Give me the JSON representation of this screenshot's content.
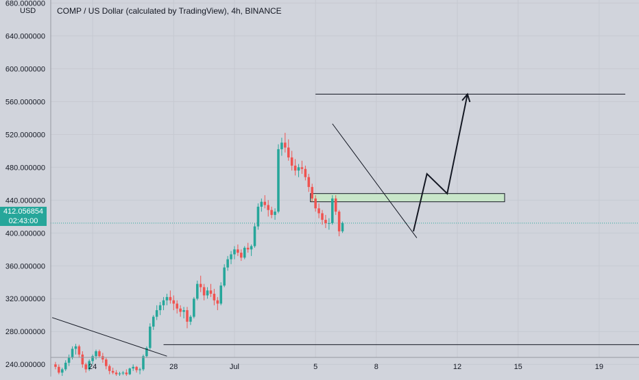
{
  "header": {
    "title": "COMP / US Dollar (calculated by TradingView), 4h, BINANCE"
  },
  "axis_unit": "USD",
  "current_price": {
    "value": "412.056854",
    "countdown": "02:43:00",
    "color": "#26a69a"
  },
  "colors": {
    "background": "#d1d4dc",
    "up": "#26a69a",
    "down": "#ef5350",
    "drawing": "#131722",
    "zone_fill": "#c8e6c9"
  },
  "chart_data": {
    "type": "candlestick",
    "title": "COMP / US Dollar (calculated by TradingView), 4h, BINANCE",
    "ylabel": "USD",
    "y_ticks": [
      {
        "label": "680.000000",
        "value": 680
      },
      {
        "label": "640.000000",
        "value": 640
      },
      {
        "label": "600.000000",
        "value": 600
      },
      {
        "label": "560.000000",
        "value": 560
      },
      {
        "label": "520.000000",
        "value": 520
      },
      {
        "label": "480.000000",
        "value": 480
      },
      {
        "label": "440.000000",
        "value": 440
      },
      {
        "label": "400.000000",
        "value": 400
      },
      {
        "label": "360.000000",
        "value": 360
      },
      {
        "label": "320.000000",
        "value": 320
      },
      {
        "label": "280.000000",
        "value": 280
      },
      {
        "label": "240.000000",
        "value": 240
      }
    ],
    "x_ticks": [
      {
        "label": "24",
        "date": "2020-06-24"
      },
      {
        "label": "28",
        "date": "2020-06-28"
      },
      {
        "label": "Jul",
        "date": "2020-07-01"
      },
      {
        "label": "5",
        "date": "2020-07-05"
      },
      {
        "label": "8",
        "date": "2020-07-08"
      },
      {
        "label": "12",
        "date": "2020-07-12"
      },
      {
        "label": "15",
        "date": "2020-07-15"
      },
      {
        "label": "19",
        "date": "2020-07-19"
      }
    ],
    "x_range": [
      "2020-06-22",
      "2020-07-21"
    ],
    "ylim": [
      226,
      682
    ],
    "candles": [
      [
        240,
        243,
        234,
        237
      ],
      [
        237,
        240,
        228,
        230
      ],
      [
        230,
        236,
        226,
        234
      ],
      [
        234,
        245,
        232,
        242
      ],
      [
        242,
        252,
        238,
        248
      ],
      [
        248,
        262,
        246,
        259
      ],
      [
        259,
        265,
        252,
        262
      ],
      [
        262,
        264,
        248,
        252
      ],
      [
        252,
        256,
        236,
        240
      ],
      [
        240,
        242,
        230,
        234
      ],
      [
        234,
        246,
        232,
        244
      ],
      [
        244,
        252,
        240,
        250
      ],
      [
        250,
        258,
        246,
        256
      ],
      [
        256,
        258,
        248,
        250
      ],
      [
        250,
        254,
        242,
        246
      ],
      [
        246,
        248,
        234,
        238
      ],
      [
        238,
        240,
        228,
        232
      ],
      [
        232,
        236,
        228,
        230
      ],
      [
        230,
        233,
        226,
        228
      ],
      [
        228,
        231,
        226,
        229
      ],
      [
        229,
        232,
        227,
        230
      ],
      [
        230,
        234,
        226,
        228
      ],
      [
        228,
        236,
        227,
        235
      ],
      [
        235,
        240,
        232,
        237
      ],
      [
        237,
        238,
        230,
        233
      ],
      [
        233,
        236,
        228,
        234
      ],
      [
        234,
        252,
        232,
        250
      ],
      [
        250,
        262,
        248,
        260
      ],
      [
        260,
        290,
        258,
        286
      ],
      [
        286,
        300,
        282,
        298
      ],
      [
        298,
        312,
        294,
        306
      ],
      [
        306,
        316,
        300,
        312
      ],
      [
        312,
        322,
        306,
        318
      ],
      [
        318,
        326,
        312,
        322
      ],
      [
        322,
        330,
        314,
        318
      ],
      [
        318,
        324,
        306,
        314
      ],
      [
        314,
        318,
        302,
        308
      ],
      [
        308,
        312,
        298,
        304
      ],
      [
        304,
        310,
        296,
        306
      ],
      [
        306,
        310,
        284,
        292
      ],
      [
        292,
        300,
        288,
        298
      ],
      [
        298,
        322,
        296,
        320
      ],
      [
        320,
        342,
        318,
        338
      ],
      [
        338,
        348,
        328,
        334
      ],
      [
        334,
        338,
        318,
        324
      ],
      [
        324,
        334,
        320,
        330
      ],
      [
        330,
        338,
        322,
        326
      ],
      [
        326,
        332,
        312,
        318
      ],
      [
        318,
        322,
        306,
        314
      ],
      [
        314,
        340,
        312,
        336
      ],
      [
        336,
        362,
        334,
        358
      ],
      [
        358,
        372,
        354,
        368
      ],
      [
        368,
        378,
        362,
        374
      ],
      [
        374,
        384,
        368,
        380
      ],
      [
        380,
        386,
        372,
        376
      ],
      [
        376,
        380,
        366,
        370
      ],
      [
        370,
        384,
        368,
        382
      ],
      [
        382,
        388,
        376,
        380
      ],
      [
        380,
        386,
        372,
        384
      ],
      [
        384,
        412,
        382,
        408
      ],
      [
        408,
        436,
        404,
        432
      ],
      [
        432,
        442,
        426,
        438
      ],
      [
        438,
        446,
        430,
        434
      ],
      [
        434,
        440,
        420,
        428
      ],
      [
        428,
        432,
        418,
        422
      ],
      [
        422,
        430,
        416,
        426
      ],
      [
        426,
        508,
        424,
        502
      ],
      [
        502,
        516,
        494,
        510
      ],
      [
        510,
        522,
        498,
        504
      ],
      [
        504,
        514,
        488,
        492
      ],
      [
        492,
        500,
        476,
        482
      ],
      [
        482,
        490,
        470,
        476
      ],
      [
        476,
        484,
        468,
        480
      ],
      [
        480,
        488,
        472,
        478
      ],
      [
        478,
        482,
        464,
        468
      ],
      [
        468,
        472,
        450,
        456
      ],
      [
        456,
        460,
        438,
        442
      ],
      [
        442,
        446,
        426,
        430
      ],
      [
        430,
        436,
        418,
        424
      ],
      [
        424,
        428,
        410,
        416
      ],
      [
        416,
        422,
        406,
        412
      ],
      [
        412,
        418,
        404,
        412
      ],
      [
        412,
        446,
        410,
        442
      ],
      [
        442,
        446,
        422,
        426
      ],
      [
        426,
        428,
        396,
        402
      ],
      [
        402,
        414,
        400,
        412
      ]
    ],
    "candle_start": "2020-06-22T04:00",
    "interval_hours": 4,
    "current_price": 412.056854,
    "annotations": {
      "resistance_level": 569,
      "support_level": 264,
      "zone": {
        "from": "2020-07-04T18:00",
        "to": "2020-07-14T08:00",
        "low": 438,
        "high": 448
      },
      "falling_trendline": [
        [
          "2020-07-05T20:00",
          533
        ],
        [
          "2020-07-10T00:00",
          394
        ]
      ],
      "old_trendline": [
        [
          "2020-06-22T00:00",
          297
        ],
        [
          "2020-06-27T16:00",
          250
        ]
      ],
      "projection_path": [
        [
          "2020-07-09T20:00",
          402
        ],
        [
          "2020-07-10T12:00",
          472
        ],
        [
          "2020-07-11T12:00",
          448
        ],
        [
          "2020-07-12T12:00",
          569
        ]
      ]
    }
  }
}
